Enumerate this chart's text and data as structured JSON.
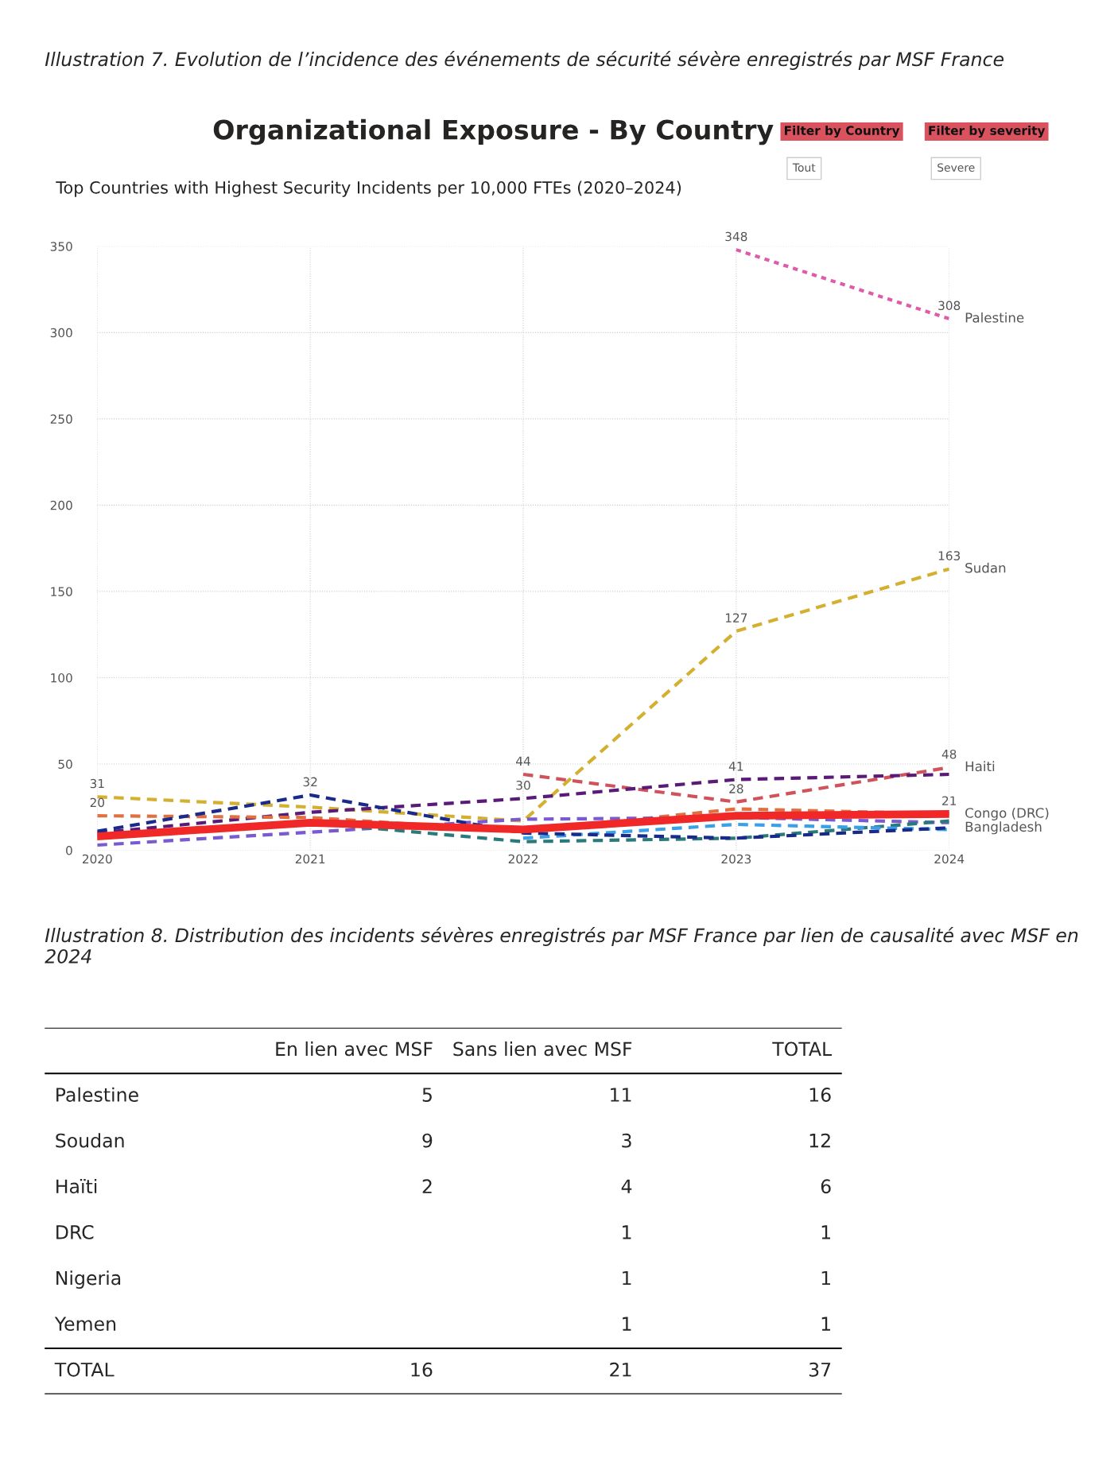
{
  "chart_data": [
    {
      "type": "line",
      "title": "Organizational Exposure - By Country",
      "subtitle": "Top Countries with Highest Security Incidents per 10,000 FTEs (2020–2024)",
      "annotations": [
        "Illustration 7. Evolution de l’incidence des événements de sécurité sévère enregistrés par MSF France",
        "Filter by Country",
        "Tout",
        "Filter by severity",
        "Severe"
      ],
      "x": [
        2020,
        2021,
        2022,
        2023,
        2024
      ],
      "xlim": [
        2020,
        2024
      ],
      "xticks": [
        2020,
        2021,
        2022,
        2023,
        2024
      ],
      "ylim": [
        0,
        350
      ],
      "yticks": [
        0,
        50,
        100,
        150,
        200,
        250,
        300,
        350
      ],
      "grid": true,
      "marker": "none",
      "series": [
        {
          "name": "Palestine",
          "color": "#e05aa8",
          "line_style": "dotted",
          "values": [
            null,
            null,
            null,
            348,
            308
          ],
          "value_labels": [
            null,
            null,
            null,
            "348",
            "308"
          ]
        },
        {
          "name": "Sudan",
          "color": "#d4b030",
          "line_style": "dashed",
          "values": [
            31,
            25,
            17,
            127,
            163
          ],
          "value_labels": [
            "31",
            null,
            null,
            "127",
            "163"
          ]
        },
        {
          "name": "Haiti",
          "color": "#d0525a",
          "line_style": "dashed",
          "values": [
            null,
            null,
            44,
            28,
            48
          ],
          "value_labels": [
            null,
            null,
            "44",
            "28",
            "48"
          ]
        },
        {
          "color": "#5a1a78",
          "line_style": "dashed",
          "values": [
            10,
            22,
            30,
            41,
            44
          ],
          "value_labels": [
            null,
            null,
            "30",
            "41",
            null
          ]
        },
        {
          "color": "#e07040",
          "line_style": "dashed",
          "values": [
            20,
            19,
            11,
            24,
            21
          ],
          "value_labels": [
            "20",
            null,
            null,
            null,
            null
          ]
        },
        {
          "color": "#7a5ad0",
          "line_style": "dashed",
          "values": [
            3,
            null,
            18,
            19,
            16
          ]
        },
        {
          "color": "#2a7a7a",
          "line_style": "dashed",
          "values": [
            8,
            16,
            5,
            7,
            17
          ]
        },
        {
          "color": "#3aa0e8",
          "line_style": "dashed",
          "values": [
            null,
            null,
            7,
            15,
            12
          ]
        },
        {
          "name": "Bangladesh",
          "color": "#1a2a8a",
          "line_style": "dashed",
          "values": [
            11,
            32,
            10,
            7,
            13
          ],
          "value_labels": [
            null,
            "32",
            null,
            null,
            null
          ]
        },
        {
          "name": "Congo (DRC)",
          "color": "#f02828",
          "line_style": "solid",
          "values": [
            8,
            16,
            12,
            20,
            21
          ],
          "value_labels": [
            null,
            null,
            null,
            null,
            "21"
          ]
        }
      ]
    },
    {
      "type": "heatmap",
      "title": "Illustration 8. Distribution des incidents sévères enregistrés par MSF France par lien de causalité avec MSF en 2024",
      "categories": [
        "En lien avec MSF",
        "Sans lien avec MSF",
        "TOTAL"
      ],
      "y_categories": [
        "Palestine",
        "Soudan",
        "Haïti",
        "DRC",
        "Nigeria",
        "Yemen",
        "TOTAL"
      ],
      "data_labels": true,
      "cells": [
        [
          5,
          11,
          16
        ],
        [
          9,
          3,
          12
        ],
        [
          2,
          4,
          6
        ],
        [
          null,
          1,
          1
        ],
        [
          null,
          1,
          1
        ],
        [
          null,
          1,
          1
        ],
        [
          16,
          21,
          37
        ]
      ]
    }
  ]
}
